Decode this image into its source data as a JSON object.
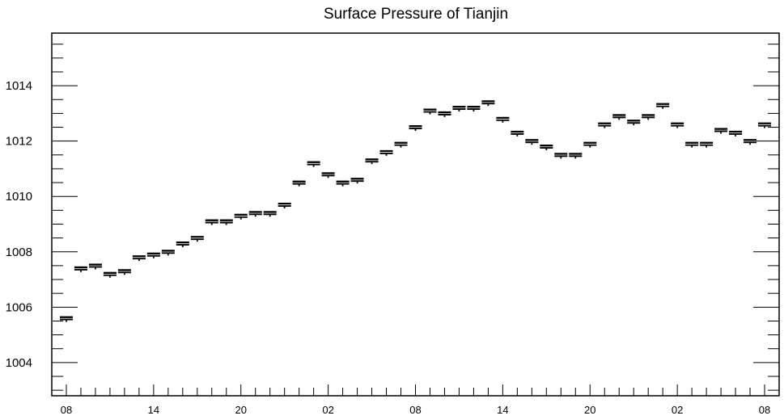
{
  "chart_data": {
    "type": "scatter",
    "title": "Surface Pressure of Tianjin",
    "xlabel": "",
    "ylabel": "",
    "x_tick_labels": [
      "08",
      "14",
      "20",
      "02",
      "08",
      "14",
      "20",
      "02",
      "08"
    ],
    "x_tick_hours": [
      0,
      6,
      12,
      18,
      24,
      30,
      36,
      42,
      48
    ],
    "xlim": [
      -1,
      49
    ],
    "y_tick_labels": [
      "1004",
      "1006",
      "1008",
      "1010",
      "1012",
      "1014"
    ],
    "ylim": [
      1002.8,
      1015.9
    ],
    "grid": false,
    "marker": "box",
    "series": [
      {
        "x": [
          0,
          1,
          2,
          3,
          4,
          5,
          6,
          7,
          8,
          9,
          10,
          11,
          12,
          13,
          14,
          15,
          16,
          17,
          18,
          19,
          20,
          21,
          22,
          23,
          24,
          25,
          26,
          27,
          28,
          29,
          30,
          31,
          32,
          33,
          34,
          35,
          36,
          37,
          38,
          39,
          40,
          41,
          42,
          43,
          44,
          45,
          46,
          47,
          48
        ],
        "y": [
          1005.6,
          1007.4,
          1007.5,
          1007.2,
          1007.3,
          1007.8,
          1007.9,
          1008.0,
          1008.3,
          1008.5,
          1009.1,
          1009.1,
          1009.3,
          1009.4,
          1009.4,
          1009.7,
          1010.5,
          1011.2,
          1010.8,
          1010.5,
          1010.6,
          1011.3,
          1011.6,
          1011.9,
          1012.5,
          1013.1,
          1013.0,
          1013.2,
          1013.2,
          1013.4,
          1012.8,
          1012.3,
          1012.0,
          1011.8,
          1011.5,
          1011.5,
          1011.9,
          1012.6,
          1012.9,
          1012.7,
          1012.9,
          1013.3,
          1012.6,
          1011.9,
          1011.9,
          1012.4,
          1012.3,
          1012.0,
          1012.6
        ]
      }
    ]
  }
}
